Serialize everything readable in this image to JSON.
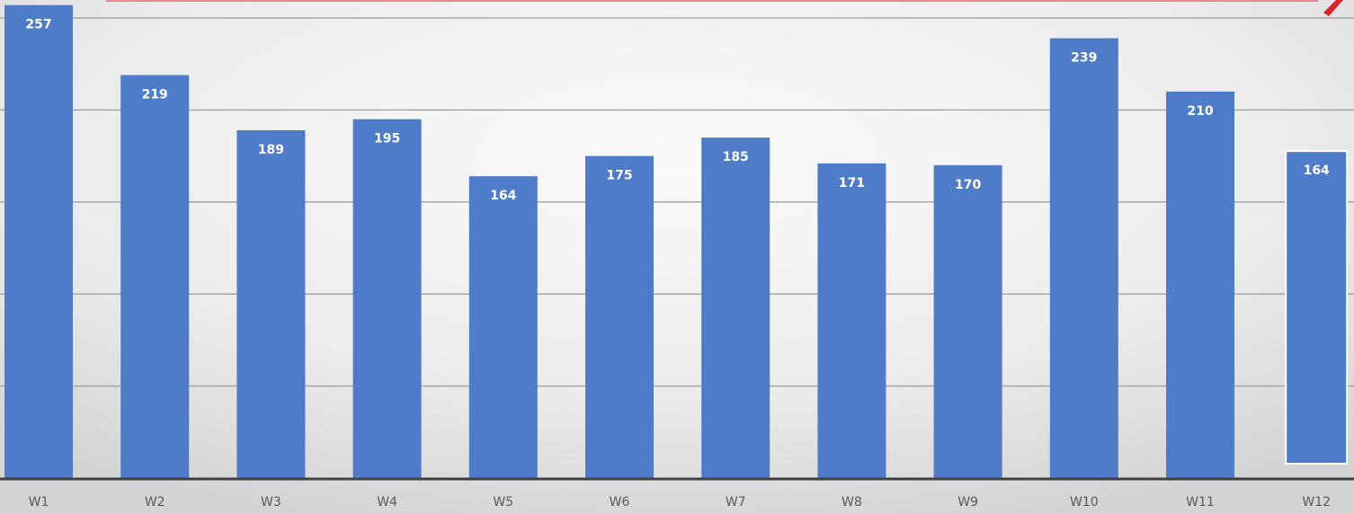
{
  "chart_data": {
    "type": "bar",
    "title": "",
    "xlabel": "",
    "ylabel": "",
    "categories": [
      "W1",
      "W2",
      "W3",
      "W4",
      "W5",
      "W6",
      "W7",
      "W8",
      "W9",
      "W10",
      "W11",
      "W12"
    ],
    "values": [
      257,
      219,
      189,
      195,
      164,
      175,
      185,
      171,
      170,
      239,
      210,
      164
    ],
    "ylim": [
      0,
      260
    ],
    "grid": true,
    "legend": "none",
    "show_data_labels": true,
    "colors": {
      "bar": "#4f7cc9",
      "bar_highlight_outline": "#ffffff",
      "gridline": "#a6a6a6",
      "axis": "#404040",
      "annotation": "#d9262b"
    },
    "highlighted_category": "W12"
  }
}
